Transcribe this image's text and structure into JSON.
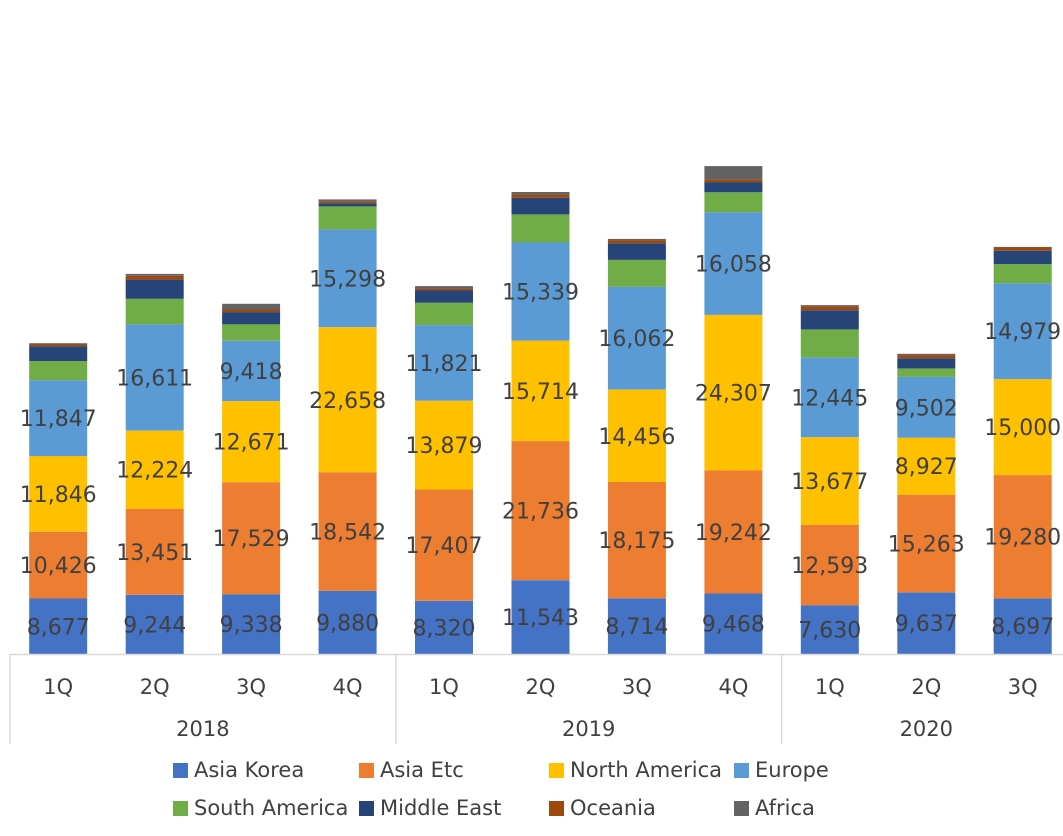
{
  "chart_data": {
    "type": "bar",
    "stacked": true,
    "groups": [
      {
        "label": "2018",
        "quarters": [
          "1Q",
          "2Q",
          "3Q",
          "4Q"
        ]
      },
      {
        "label": "2019",
        "quarters": [
          "1Q",
          "2Q",
          "3Q",
          "4Q"
        ]
      },
      {
        "label": "2020",
        "quarters": [
          "1Q",
          "2Q",
          "3Q"
        ]
      }
    ],
    "categories": [
      "2018 1Q",
      "2018 2Q",
      "2018 3Q",
      "2018 4Q",
      "2019 1Q",
      "2019 2Q",
      "2019 3Q",
      "2019 4Q",
      "2020 1Q",
      "2020 2Q",
      "2020 3Q"
    ],
    "series": [
      {
        "name": "Asia Korea",
        "color": "#4472C4",
        "labeled": true,
        "values": [
          8677,
          9244,
          9338,
          9880,
          8320,
          11543,
          8714,
          9468,
          7630,
          9637,
          8697
        ]
      },
      {
        "name": "Asia Etc",
        "color": "#ED7D31",
        "labeled": true,
        "values": [
          10426,
          13451,
          17529,
          18542,
          17407,
          21736,
          18175,
          19242,
          12593,
          15263,
          19280
        ]
      },
      {
        "name": "North America",
        "color": "#FFC000",
        "labeled": true,
        "values": [
          11846,
          12224,
          12671,
          22658,
          13879,
          15714,
          14456,
          24307,
          13677,
          8927,
          15000
        ]
      },
      {
        "name": "Europe",
        "color": "#5B9BD5",
        "labeled": true,
        "values": [
          11847,
          16611,
          9418,
          15298,
          11821,
          15339,
          16062,
          16058,
          12445,
          9502,
          14979
        ]
      },
      {
        "name": "South America",
        "color": "#70AD47",
        "labeled": false,
        "values": [
          3000,
          4000,
          2600,
          3600,
          3500,
          4400,
          4200,
          3100,
          4400,
          1300,
          3000
        ]
      },
      {
        "name": "Middle East",
        "color": "#264478",
        "labeled": false,
        "values": [
          2300,
          3000,
          1900,
          500,
          1900,
          2600,
          2600,
          1600,
          3000,
          1600,
          2100
        ]
      },
      {
        "name": "Oceania",
        "color": "#9E480E",
        "labeled": false,
        "values": [
          300,
          600,
          400,
          300,
          300,
          500,
          500,
          400,
          600,
          500,
          500
        ]
      },
      {
        "name": "Africa",
        "color": "#636363",
        "labeled": false,
        "values": [
          200,
          300,
          900,
          300,
          400,
          400,
          200,
          2100,
          200,
          200,
          100
        ]
      }
    ],
    "ylim": [
      0,
      101000
    ],
    "grid": false,
    "legend_position": "bottom"
  },
  "legend": {
    "rows": [
      [
        "Asia Korea",
        "Asia Etc",
        "North America",
        "Europe"
      ],
      [
        "South America",
        "Middle East",
        "Oceania",
        "Africa"
      ]
    ]
  }
}
